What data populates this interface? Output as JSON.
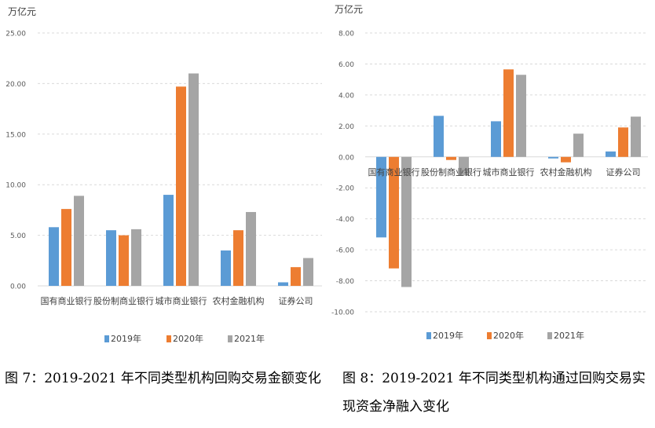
{
  "colors": {
    "2019年": "#5b9bd5",
    "2020年": "#ed7d31",
    "2021年": "#a5a5a5",
    "grid": "#d9d9d9",
    "axis_text": "#595959"
  },
  "chart_data": [
    {
      "type": "bar",
      "unit_label": "万亿元",
      "categories": [
        "国有商业银行",
        "股份制商业银行",
        "城市商业银行",
        "农村金融机构",
        "证券公司"
      ],
      "series": [
        {
          "name": "2019年",
          "values": [
            5.8,
            5.5,
            9.0,
            3.5,
            0.35
          ]
        },
        {
          "name": "2020年",
          "values": [
            7.6,
            5.0,
            19.7,
            5.5,
            1.85
          ]
        },
        {
          "name": "2021年",
          "values": [
            8.9,
            5.6,
            21.0,
            7.3,
            2.75
          ]
        }
      ],
      "ylim": [
        0,
        25
      ],
      "y_ticks": [
        "25.00",
        "20.00",
        "15.00",
        "10.00",
        "5.00",
        "0.00"
      ],
      "grid": true,
      "legend": "bottom"
    },
    {
      "type": "bar",
      "unit_label": "万亿元",
      "categories": [
        "国有商业银行",
        "股份制商业银行",
        "城市商业银行",
        "农村金融机构",
        "证券公司"
      ],
      "series": [
        {
          "name": "2019年",
          "values": [
            -5.2,
            2.65,
            2.3,
            -0.1,
            0.35
          ]
        },
        {
          "name": "2020年",
          "values": [
            -7.2,
            -0.2,
            5.65,
            -0.35,
            1.9
          ]
        },
        {
          "name": "2021年",
          "values": [
            -8.4,
            -1.2,
            5.3,
            1.5,
            2.6
          ]
        }
      ],
      "ylim": [
        -10,
        8
      ],
      "y_ticks": [
        "8.00",
        "6.00",
        "4.00",
        "2.00",
        "0.00",
        "-2.00",
        "-4.00",
        "-6.00",
        "-8.00",
        "-10.00"
      ],
      "grid": true,
      "legend": "bottom"
    }
  ],
  "captions": [
    "图 7：2019-2021 年不同类型机构回购交易金额变化",
    "图 8：2019-2021 年不同类型机构通过回购交易实现资金净融入变化"
  ]
}
